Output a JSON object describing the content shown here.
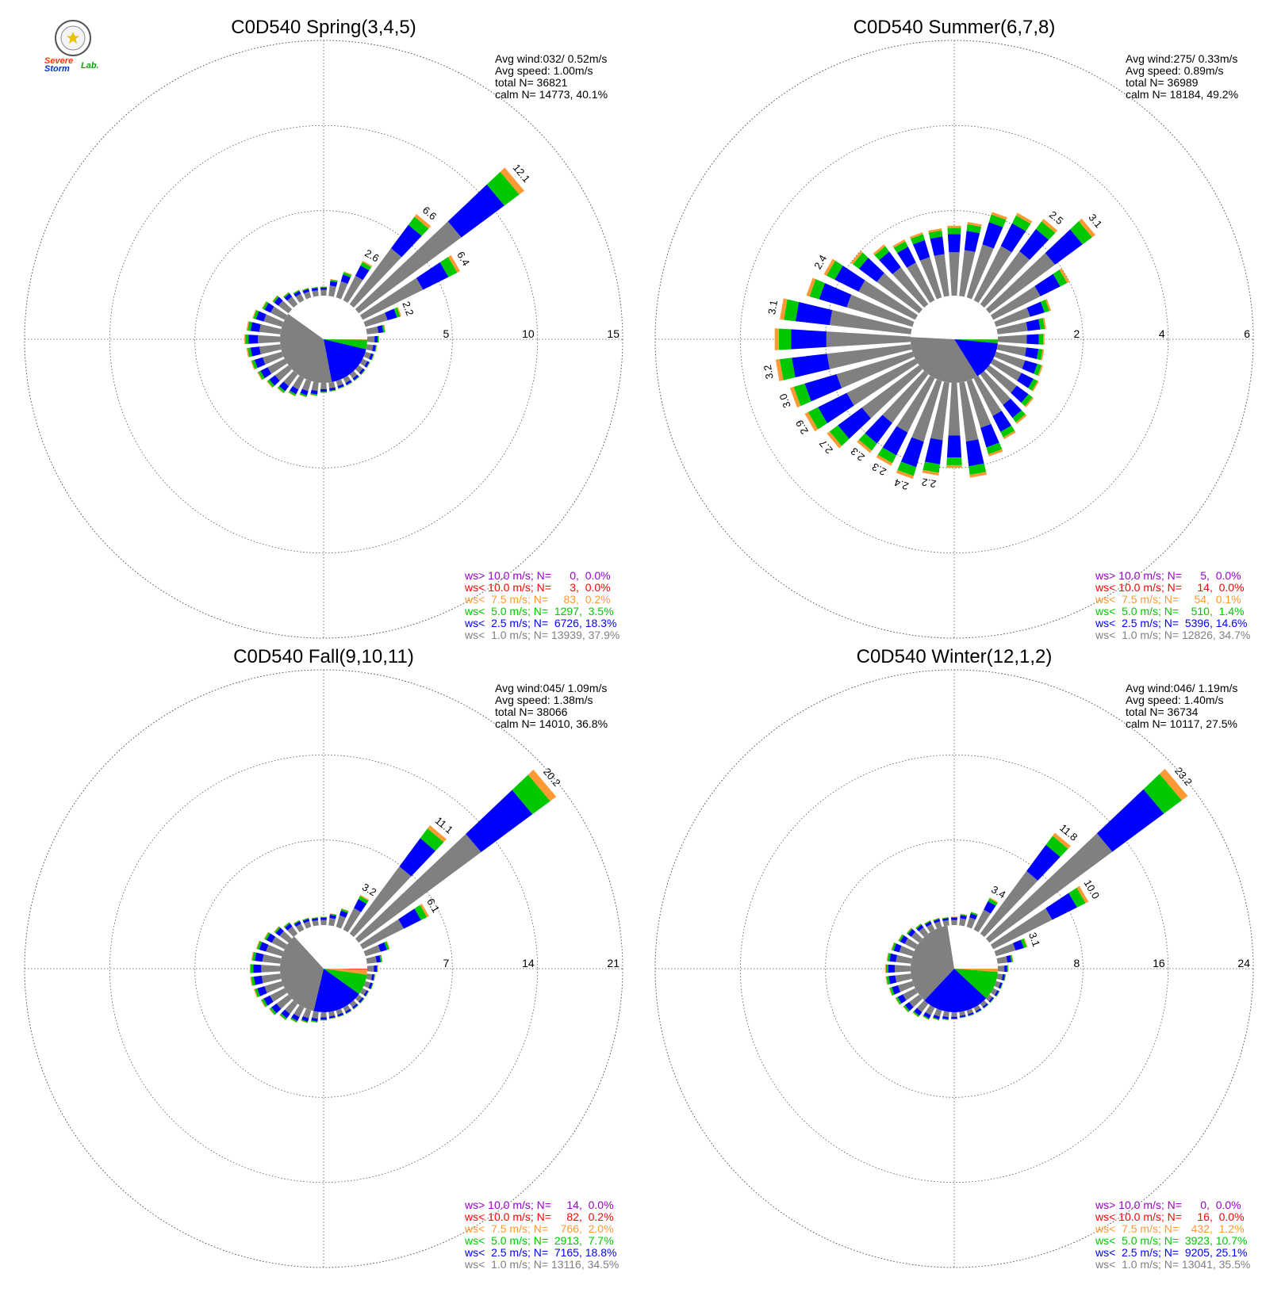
{
  "colors": {
    "gray": "#808080",
    "blue": "#0000ff",
    "green": "#00c800",
    "orange": "#ff9933",
    "red": "#ff0000",
    "purple": "#9900cc"
  },
  "logo": {
    "icon": "severe-storm-lab-logo",
    "text_a": "Severe",
    "text_b": "Storm",
    "text_c": "Lab."
  },
  "chart_data": [
    {
      "type": "windrose",
      "title": "C0D540 Spring(3,4,5)",
      "rings": [
        5,
        10,
        15
      ],
      "ring_labels": [
        "5",
        "10",
        "15"
      ],
      "stats": {
        "avg_wind": "Avg wind:032/ 0.52m/s",
        "avg_speed": "Avg speed: 1.00m/s",
        "total": "total N=      36821",
        "calm": "calm N=  14773,  40.1%"
      },
      "calm_pie": {
        "gray": 37.9,
        "blue": 18.3,
        "green": 3.5,
        "orange": 0.2,
        "red": 0.0
      },
      "petals": [
        {
          "dir": 0,
          "total": 0.55,
          "label": ""
        },
        {
          "dir": 10,
          "total": 1.0,
          "label": ""
        },
        {
          "dir": 20,
          "total": 1.6,
          "label": ""
        },
        {
          "dir": 30,
          "total": 2.6,
          "label": "2.6"
        },
        {
          "dir": 40,
          "total": 6.6,
          "label": "6.6"
        },
        {
          "dir": 50,
          "total": 12.1,
          "label": "12.1"
        },
        {
          "dir": 60,
          "total": 6.4,
          "label": "6.4"
        },
        {
          "dir": 70,
          "total": 2.2,
          "label": "2.2"
        },
        {
          "dir": 80,
          "total": 1.1,
          "label": ""
        },
        {
          "dir": 90,
          "total": 0.7,
          "label": ""
        },
        {
          "dir": 100,
          "total": 0.6,
          "label": ""
        },
        {
          "dir": 110,
          "total": 0.55,
          "label": ""
        },
        {
          "dir": 120,
          "total": 0.5,
          "label": ""
        },
        {
          "dir": 130,
          "total": 0.5,
          "label": ""
        },
        {
          "dir": 140,
          "total": 0.5,
          "label": ""
        },
        {
          "dir": 150,
          "total": 0.5,
          "label": ""
        },
        {
          "dir": 160,
          "total": 0.5,
          "label": ""
        },
        {
          "dir": 170,
          "total": 0.55,
          "label": ""
        },
        {
          "dir": 180,
          "total": 0.6,
          "label": ""
        },
        {
          "dir": 190,
          "total": 0.8,
          "label": ""
        },
        {
          "dir": 200,
          "total": 1.0,
          "label": ""
        },
        {
          "dir": 210,
          "total": 1.2,
          "label": ""
        },
        {
          "dir": 220,
          "total": 1.4,
          "label": ""
        },
        {
          "dir": 230,
          "total": 1.6,
          "label": ""
        },
        {
          "dir": 240,
          "total": 1.8,
          "label": ""
        },
        {
          "dir": 250,
          "total": 1.9,
          "label": ""
        },
        {
          "dir": 260,
          "total": 2.0,
          "label": ""
        },
        {
          "dir": 270,
          "total": 2.1,
          "label": ""
        },
        {
          "dir": 280,
          "total": 2.0,
          "label": ""
        },
        {
          "dir": 290,
          "total": 1.8,
          "label": ""
        },
        {
          "dir": 300,
          "total": 1.5,
          "label": ""
        },
        {
          "dir": 310,
          "total": 1.2,
          "label": ""
        },
        {
          "dir": 320,
          "total": 0.9,
          "label": ""
        },
        {
          "dir": 330,
          "total": 0.7,
          "label": ""
        },
        {
          "dir": 340,
          "total": 0.6,
          "label": ""
        },
        {
          "dir": 350,
          "total": 0.55,
          "label": ""
        }
      ],
      "legend": [
        {
          "text": "ws> 10.0 m/s; N=      0,  0.0%",
          "color": "#9900cc"
        },
        {
          "text": "ws< 10.0 m/s; N=      3,  0.0%",
          "color": "#ff0000"
        },
        {
          "text": "ws<  7.5 m/s; N=     83,  0.2%",
          "color": "#ff9933"
        },
        {
          "text": "ws<  5.0 m/s; N=  1297,  3.5%",
          "color": "#00c800"
        },
        {
          "text": "ws<  2.5 m/s; N=  6726, 18.3%",
          "color": "#0000ff"
        },
        {
          "text": "ws<  1.0 m/s; N= 13939, 37.9%",
          "color": "#808080"
        }
      ]
    },
    {
      "type": "windrose",
      "title": "C0D540 Summer(6,7,8)",
      "rings": [
        2,
        4,
        6
      ],
      "ring_labels": [
        "2",
        "4",
        "6"
      ],
      "stats": {
        "avg_wind": "Avg wind:275/ 0.33m/s",
        "avg_speed": "Avg speed: 0.89m/s",
        "total": "total N=      36989",
        "calm": "calm N=  18184,  49.2%"
      },
      "calm_pie": {
        "gray": 34.7,
        "blue": 14.6,
        "green": 1.4,
        "orange": 0.1,
        "red": 0.0
      },
      "petals": [
        {
          "dir": 0,
          "total": 1.65,
          "label": ""
        },
        {
          "dir": 10,
          "total": 1.75,
          "label": ""
        },
        {
          "dir": 20,
          "total": 2.1,
          "label": ""
        },
        {
          "dir": 30,
          "total": 2.3,
          "label": ""
        },
        {
          "dir": 40,
          "total": 2.5,
          "label": "2.5"
        },
        {
          "dir": 50,
          "total": 3.1,
          "label": "3.1"
        },
        {
          "dir": 60,
          "total": 2.0,
          "label": ""
        },
        {
          "dir": 70,
          "total": 1.35,
          "label": ""
        },
        {
          "dir": 80,
          "total": 1.15,
          "label": ""
        },
        {
          "dir": 90,
          "total": 1.1,
          "label": ""
        },
        {
          "dir": 100,
          "total": 1.1,
          "label": ""
        },
        {
          "dir": 110,
          "total": 1.15,
          "label": ""
        },
        {
          "dir": 120,
          "total": 1.2,
          "label": ""
        },
        {
          "dir": 130,
          "total": 1.3,
          "label": ""
        },
        {
          "dir": 140,
          "total": 1.45,
          "label": ""
        },
        {
          "dir": 150,
          "total": 1.6,
          "label": ""
        },
        {
          "dir": 160,
          "total": 1.85,
          "label": ""
        },
        {
          "dir": 170,
          "total": 2.25,
          "label": ""
        },
        {
          "dir": 180,
          "total": 2.0,
          "label": ""
        },
        {
          "dir": 190,
          "total": 2.2,
          "label": "2.2"
        },
        {
          "dir": 200,
          "total": 2.4,
          "label": "2.4"
        },
        {
          "dir": 210,
          "total": 2.3,
          "label": "2.3"
        },
        {
          "dir": 220,
          "total": 2.3,
          "label": "2.3"
        },
        {
          "dir": 230,
          "total": 2.7,
          "label": "2.7"
        },
        {
          "dir": 240,
          "total": 2.9,
          "label": "2.9"
        },
        {
          "dir": 250,
          "total": 3.0,
          "label": "3.0"
        },
        {
          "dir": 260,
          "total": 3.2,
          "label": "3.2"
        },
        {
          "dir": 270,
          "total": 3.2,
          "label": ""
        },
        {
          "dir": 280,
          "total": 3.1,
          "label": "3.1"
        },
        {
          "dir": 290,
          "total": 2.6,
          "label": ""
        },
        {
          "dir": 300,
          "total": 2.4,
          "label": "2.4"
        },
        {
          "dir": 310,
          "total": 2.0,
          "label": ""
        },
        {
          "dir": 320,
          "total": 1.75,
          "label": ""
        },
        {
          "dir": 330,
          "total": 1.6,
          "label": ""
        },
        {
          "dir": 340,
          "total": 1.6,
          "label": ""
        },
        {
          "dir": 350,
          "total": 1.6,
          "label": ""
        }
      ],
      "legend": [
        {
          "text": "ws> 10.0 m/s; N=      5,  0.0%",
          "color": "#9900cc"
        },
        {
          "text": "ws< 10.0 m/s; N=     14,  0.0%",
          "color": "#ff0000"
        },
        {
          "text": "ws<  7.5 m/s; N=     54,  0.1%",
          "color": "#ff9933"
        },
        {
          "text": "ws<  5.0 m/s; N=    510,  1.4%",
          "color": "#00c800"
        },
        {
          "text": "ws<  2.5 m/s; N=  5396, 14.6%",
          "color": "#0000ff"
        },
        {
          "text": "ws<  1.0 m/s; N= 12826, 34.7%",
          "color": "#808080"
        }
      ]
    },
    {
      "type": "windrose",
      "title": "C0D540 Fall(9,10,11)",
      "rings": [
        7,
        14,
        21
      ],
      "ring_labels": [
        "7",
        "14",
        "21"
      ],
      "stats": {
        "avg_wind": "Avg wind:045/ 1.09m/s",
        "avg_speed": "Avg speed: 1.38m/s",
        "total": "total N=      38066",
        "calm": "calm N=  14010,  36.8%"
      },
      "calm_pie": {
        "gray": 34.5,
        "blue": 18.8,
        "green": 7.7,
        "orange": 2.0,
        "red": 0.2
      },
      "petals": [
        {
          "dir": 0,
          "total": 0.7,
          "label": ""
        },
        {
          "dir": 10,
          "total": 1.0,
          "label": ""
        },
        {
          "dir": 20,
          "total": 1.6,
          "label": ""
        },
        {
          "dir": 30,
          "total": 3.2,
          "label": "3.2"
        },
        {
          "dir": 40,
          "total": 11.1,
          "label": "11.1"
        },
        {
          "dir": 50,
          "total": 20.2,
          "label": "20.2"
        },
        {
          "dir": 60,
          "total": 6.1,
          "label": "6.1"
        },
        {
          "dir": 70,
          "total": 2.1,
          "label": ""
        },
        {
          "dir": 80,
          "total": 1.3,
          "label": ""
        },
        {
          "dir": 90,
          "total": 0.9,
          "label": ""
        },
        {
          "dir": 100,
          "total": 0.7,
          "label": ""
        },
        {
          "dir": 110,
          "total": 0.7,
          "label": ""
        },
        {
          "dir": 120,
          "total": 0.6,
          "label": ""
        },
        {
          "dir": 130,
          "total": 0.6,
          "label": ""
        },
        {
          "dir": 140,
          "total": 0.6,
          "label": ""
        },
        {
          "dir": 150,
          "total": 0.6,
          "label": ""
        },
        {
          "dir": 160,
          "total": 0.6,
          "label": ""
        },
        {
          "dir": 170,
          "total": 0.6,
          "label": ""
        },
        {
          "dir": 180,
          "total": 0.7,
          "label": ""
        },
        {
          "dir": 190,
          "total": 0.9,
          "label": ""
        },
        {
          "dir": 200,
          "total": 1.1,
          "label": ""
        },
        {
          "dir": 210,
          "total": 1.4,
          "label": ""
        },
        {
          "dir": 220,
          "total": 1.7,
          "label": ""
        },
        {
          "dir": 230,
          "total": 2.0,
          "label": ""
        },
        {
          "dir": 240,
          "total": 2.2,
          "label": ""
        },
        {
          "dir": 250,
          "total": 2.4,
          "label": ""
        },
        {
          "dir": 260,
          "total": 2.5,
          "label": ""
        },
        {
          "dir": 270,
          "total": 2.5,
          "label": ""
        },
        {
          "dir": 280,
          "total": 2.4,
          "label": ""
        },
        {
          "dir": 290,
          "total": 2.2,
          "label": ""
        },
        {
          "dir": 300,
          "total": 1.9,
          "label": ""
        },
        {
          "dir": 310,
          "total": 1.5,
          "label": ""
        },
        {
          "dir": 320,
          "total": 1.2,
          "label": ""
        },
        {
          "dir": 330,
          "total": 0.9,
          "label": ""
        },
        {
          "dir": 340,
          "total": 0.8,
          "label": ""
        },
        {
          "dir": 350,
          "total": 0.7,
          "label": ""
        }
      ],
      "legend": [
        {
          "text": "ws> 10.0 m/s; N=     14,  0.0%",
          "color": "#9900cc"
        },
        {
          "text": "ws< 10.0 m/s; N=     82,  0.2%",
          "color": "#ff0000"
        },
        {
          "text": "ws<  7.5 m/s; N=    766,  2.0%",
          "color": "#ff9933"
        },
        {
          "text": "ws<  5.0 m/s; N=  2913,  7.7%",
          "color": "#00c800"
        },
        {
          "text": "ws<  2.5 m/s; N=  7165, 18.8%",
          "color": "#0000ff"
        },
        {
          "text": "ws<  1.0 m/s; N= 13116, 34.5%",
          "color": "#808080"
        }
      ]
    },
    {
      "type": "windrose",
      "title": "C0D540 Winter(12,1,2)",
      "rings": [
        8,
        16,
        24
      ],
      "ring_labels": [
        "8",
        "16",
        "24"
      ],
      "stats": {
        "avg_wind": "Avg wind:046/ 1.19m/s",
        "avg_speed": "Avg speed: 1.40m/s",
        "total": "total N=      36734",
        "calm": "calm N=  10117,  27.5%"
      },
      "calm_pie": {
        "gray": 35.5,
        "blue": 25.1,
        "green": 10.7,
        "orange": 1.2,
        "red": 0.0
      },
      "petals": [
        {
          "dir": 0,
          "total": 0.8,
          "label": ""
        },
        {
          "dir": 10,
          "total": 1.1,
          "label": ""
        },
        {
          "dir": 20,
          "total": 1.5,
          "label": ""
        },
        {
          "dir": 30,
          "total": 3.4,
          "label": "3.4"
        },
        {
          "dir": 40,
          "total": 11.8,
          "label": "11.8"
        },
        {
          "dir": 50,
          "total": 23.2,
          "label": "23.2"
        },
        {
          "dir": 60,
          "total": 10.0,
          "label": "10.0"
        },
        {
          "dir": 70,
          "total": 3.1,
          "label": "3.1"
        },
        {
          "dir": 80,
          "total": 1.5,
          "label": ""
        },
        {
          "dir": 90,
          "total": 1.0,
          "label": ""
        },
        {
          "dir": 100,
          "total": 0.8,
          "label": ""
        },
        {
          "dir": 110,
          "total": 0.7,
          "label": ""
        },
        {
          "dir": 120,
          "total": 0.7,
          "label": ""
        },
        {
          "dir": 130,
          "total": 0.6,
          "label": ""
        },
        {
          "dir": 140,
          "total": 0.6,
          "label": ""
        },
        {
          "dir": 150,
          "total": 0.6,
          "label": ""
        },
        {
          "dir": 160,
          "total": 0.6,
          "label": ""
        },
        {
          "dir": 170,
          "total": 0.6,
          "label": ""
        },
        {
          "dir": 180,
          "total": 0.7,
          "label": ""
        },
        {
          "dir": 190,
          "total": 0.8,
          "label": ""
        },
        {
          "dir": 200,
          "total": 1.0,
          "label": ""
        },
        {
          "dir": 210,
          "total": 1.3,
          "label": ""
        },
        {
          "dir": 220,
          "total": 1.6,
          "label": ""
        },
        {
          "dir": 230,
          "total": 1.9,
          "label": ""
        },
        {
          "dir": 240,
          "total": 2.1,
          "label": ""
        },
        {
          "dir": 250,
          "total": 2.3,
          "label": ""
        },
        {
          "dir": 260,
          "total": 2.4,
          "label": ""
        },
        {
          "dir": 270,
          "total": 2.4,
          "label": ""
        },
        {
          "dir": 280,
          "total": 2.3,
          "label": ""
        },
        {
          "dir": 290,
          "total": 2.1,
          "label": ""
        },
        {
          "dir": 300,
          "total": 1.8,
          "label": ""
        },
        {
          "dir": 310,
          "total": 1.5,
          "label": ""
        },
        {
          "dir": 320,
          "total": 1.2,
          "label": ""
        },
        {
          "dir": 330,
          "total": 1.0,
          "label": ""
        },
        {
          "dir": 340,
          "total": 0.9,
          "label": ""
        },
        {
          "dir": 350,
          "total": 0.8,
          "label": ""
        }
      ],
      "legend": [
        {
          "text": "ws> 10.0 m/s; N=      0,  0.0%",
          "color": "#9900cc"
        },
        {
          "text": "ws< 10.0 m/s; N=     16,  0.0%",
          "color": "#ff0000"
        },
        {
          "text": "ws<  7.5 m/s; N=    432,  1.2%",
          "color": "#ff9933"
        },
        {
          "text": "ws<  5.0 m/s; N=  3923, 10.7%",
          "color": "#00c800"
        },
        {
          "text": "ws<  2.5 m/s; N=  9205, 25.1%",
          "color": "#0000ff"
        },
        {
          "text": "ws<  1.0 m/s; N= 13041, 35.5%",
          "color": "#808080"
        }
      ]
    }
  ]
}
